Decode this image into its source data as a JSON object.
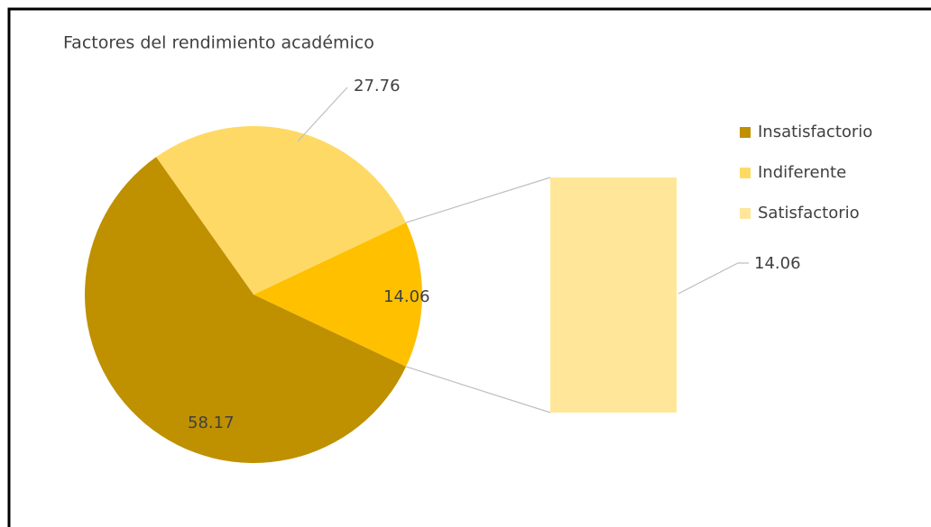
{
  "chart_data": {
    "type": "bar-of-pie",
    "title": "Factores del rendimiento académico",
    "categories": [
      "Insatisfactorio",
      "Indiferente",
      "Satisfactorio"
    ],
    "values": [
      58.17,
      27.76,
      14.06
    ],
    "colors": [
      "#bf9000",
      "#ffd966",
      "#ffe699"
    ],
    "other_color": "#ffc000",
    "legend": "right"
  }
}
